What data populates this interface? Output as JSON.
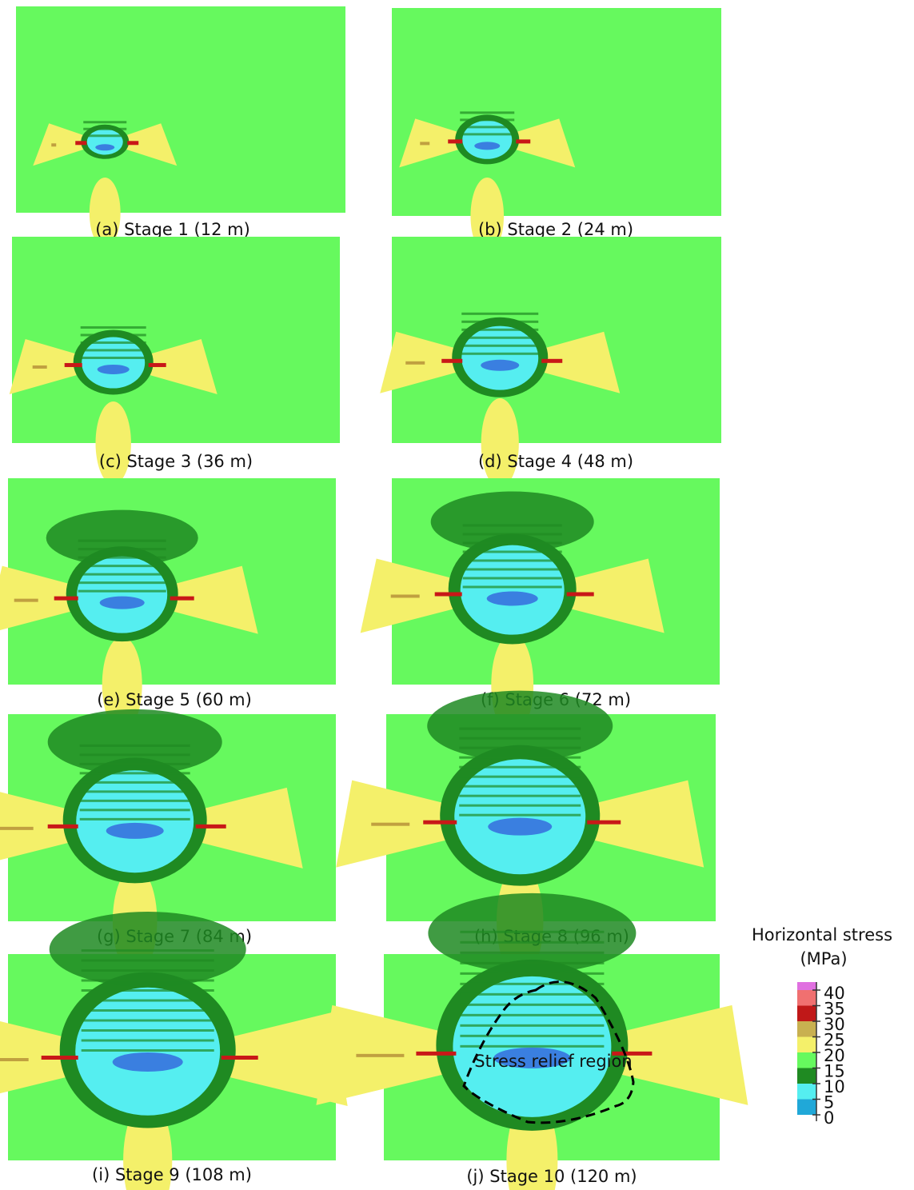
{
  "panels": [
    {
      "caption": "(a) Stage 1 (12 m)"
    },
    {
      "caption": "(b) Stage 2 (24 m)"
    },
    {
      "caption": "(c) Stage 3 (36 m)"
    },
    {
      "caption": "(d) Stage 4 (48 m)"
    },
    {
      "caption": "(e) Stage 5 (60 m)"
    },
    {
      "caption": "(f) Stage 6 (72 m)"
    },
    {
      "caption": "(g) Stage 7 (84 m)"
    },
    {
      "caption": "(h) Stage 8 (96 m)"
    },
    {
      "caption": "(i) Stage 9 (108 m)"
    },
    {
      "caption": "(j) Stage 10 (120 m)"
    }
  ],
  "annotation": "Stress relief region",
  "legend": {
    "title": "Horizontal stress",
    "unit": "(MPa)",
    "ticks": [
      40,
      35,
      30,
      25,
      20,
      15,
      10,
      5,
      0
    ]
  }
}
